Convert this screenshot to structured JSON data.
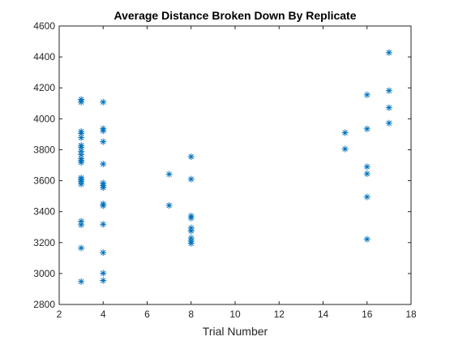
{
  "chart_data": {
    "type": "scatter",
    "title": "Average Distance Broken Down By Replicate",
    "xlabel": "Trial Number",
    "ylabel": "",
    "xlim": [
      2,
      18
    ],
    "ylim": [
      2800,
      4600
    ],
    "xticks": [
      2,
      4,
      6,
      8,
      10,
      12,
      14,
      16,
      18
    ],
    "yticks": [
      2800,
      3000,
      3200,
      3400,
      3600,
      3800,
      4000,
      4200,
      4400,
      4600
    ],
    "marker": "asterisk",
    "marker_color": "#0072BD",
    "grid": false,
    "box": true,
    "series": [
      {
        "points": [
          [
            3,
            4125
          ],
          [
            3,
            4108
          ],
          [
            3,
            3918
          ],
          [
            3,
            3905
          ],
          [
            3,
            3878
          ],
          [
            3,
            3828
          ],
          [
            3,
            3815
          ],
          [
            3,
            3790
          ],
          [
            3,
            3768
          ],
          [
            3,
            3742
          ],
          [
            3,
            3730
          ],
          [
            3,
            3718
          ],
          [
            3,
            3618
          ],
          [
            3,
            3608
          ],
          [
            3,
            3596
          ],
          [
            3,
            3578
          ],
          [
            3,
            3338
          ],
          [
            3,
            3315
          ],
          [
            3,
            3165
          ],
          [
            3,
            2948
          ],
          [
            4,
            4108
          ],
          [
            4,
            3936
          ],
          [
            4,
            3922
          ],
          [
            4,
            3852
          ],
          [
            4,
            3708
          ],
          [
            4,
            3585
          ],
          [
            4,
            3570
          ],
          [
            4,
            3555
          ],
          [
            4,
            3450
          ],
          [
            4,
            3438
          ],
          [
            4,
            3318
          ],
          [
            4,
            3135
          ],
          [
            4,
            3002
          ],
          [
            4,
            2955
          ],
          [
            7,
            3642
          ],
          [
            7,
            3440
          ],
          [
            8,
            3755
          ],
          [
            8,
            3610
          ],
          [
            8,
            3372
          ],
          [
            8,
            3358
          ],
          [
            8,
            3295
          ],
          [
            8,
            3275
          ],
          [
            8,
            3230
          ],
          [
            8,
            3210
          ],
          [
            8,
            3195
          ],
          [
            15,
            3910
          ],
          [
            15,
            3805
          ],
          [
            16,
            4155
          ],
          [
            16,
            3935
          ],
          [
            16,
            3690
          ],
          [
            16,
            3645
          ],
          [
            16,
            3495
          ],
          [
            16,
            3222
          ],
          [
            17,
            4428
          ],
          [
            17,
            4182
          ],
          [
            17,
            4072
          ],
          [
            17,
            3972
          ]
        ]
      }
    ]
  }
}
